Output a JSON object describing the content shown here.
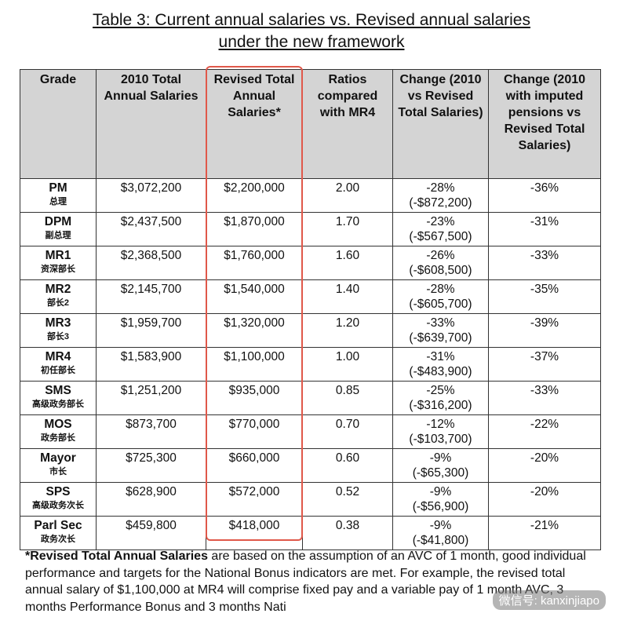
{
  "header": {
    "title_lines": [
      "Table 3: Current annual salaries vs. Revised annual salaries",
      "under the new framework"
    ]
  },
  "table": {
    "columns": [
      "Grade",
      "2010 Total Annual Salaries",
      "Revised Total Annual Salaries*",
      "Ratios compared with MR4",
      "Change (2010 vs Revised Total Salaries)",
      "Change (2010 with imputed pensions vs Revised Total Salaries)"
    ],
    "rows": [
      {
        "grade": "PM",
        "zh": "总理",
        "salary_2010": "$3,072,200",
        "revised": "$2,200,000",
        "ratio": "2.00",
        "change_pct": "-28%",
        "change_amt": "(-$872,200)",
        "change_pension": "-36%"
      },
      {
        "grade": "DPM",
        "zh": "副总理",
        "salary_2010": "$2,437,500",
        "revised": "$1,870,000",
        "ratio": "1.70",
        "change_pct": "-23%",
        "change_amt": "(-$567,500)",
        "change_pension": "-31%"
      },
      {
        "grade": "MR1",
        "zh": "资深部长",
        "salary_2010": "$2,368,500",
        "revised": "$1,760,000",
        "ratio": "1.60",
        "change_pct": "-26%",
        "change_amt": "(-$608,500)",
        "change_pension": "-33%"
      },
      {
        "grade": "MR2",
        "zh": "部长2",
        "salary_2010": "$2,145,700",
        "revised": "$1,540,000",
        "ratio": "1.40",
        "change_pct": "-28%",
        "change_amt": "(-$605,700)",
        "change_pension": "-35%"
      },
      {
        "grade": "MR3",
        "zh": "部长3",
        "salary_2010": "$1,959,700",
        "revised": "$1,320,000",
        "ratio": "1.20",
        "change_pct": "-33%",
        "change_amt": "(-$639,700)",
        "change_pension": "-39%"
      },
      {
        "grade": "MR4",
        "zh": "初任部长",
        "salary_2010": "$1,583,900",
        "revised": "$1,100,000",
        "ratio": "1.00",
        "change_pct": "-31%",
        "change_amt": "(-$483,900)",
        "change_pension": "-37%"
      },
      {
        "grade": "SMS",
        "zh": "高级政务部长",
        "salary_2010": "$1,251,200",
        "revised": "$935,000",
        "ratio": "0.85",
        "change_pct": "-25%",
        "change_amt": "(-$316,200)",
        "change_pension": "-33%"
      },
      {
        "grade": "MOS",
        "zh": "政务部长",
        "salary_2010": "$873,700",
        "revised": "$770,000",
        "ratio": "0.70",
        "change_pct": "-12%",
        "change_amt": "(-$103,700)",
        "change_pension": "-22%"
      },
      {
        "grade": "Mayor",
        "zh": "市长",
        "salary_2010": "$725,300",
        "revised": "$660,000",
        "ratio": "0.60",
        "change_pct": "-9%",
        "change_amt": "(-$65,300)",
        "change_pension": "-20%"
      },
      {
        "grade": "SPS",
        "zh": "高级政务次长",
        "salary_2010": "$628,900",
        "revised": "$572,000",
        "ratio": "0.52",
        "change_pct": "-9%",
        "change_amt": "(-$56,900)",
        "change_pension": "-20%"
      },
      {
        "grade": "Parl Sec",
        "zh": "政务次长",
        "salary_2010": "$459,800",
        "revised": "$418,000",
        "ratio": "0.38",
        "change_pct": "-9%",
        "change_amt": "(-$41,800)",
        "change_pension": "-21%"
      }
    ]
  },
  "footnote": {
    "bold": "*Revised Total Annual Salaries",
    "text": " are based on the assumption of an AVC of 1 month, good individual performance and targets for the National Bonus indicators are met. For example, the revised total annual salary of $1,100,000 at MR4 will comprise fixed pay and a variable pay of 1 month AVC, 3 months Performance Bonus and 3 months Nati"
  },
  "watermark": "微信号: kanxinjiapo"
}
